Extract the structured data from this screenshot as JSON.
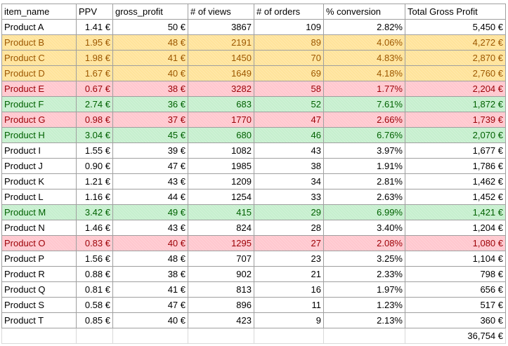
{
  "table": {
    "headers": [
      "item_name",
      "PPV",
      "gross_profit",
      "# of views",
      "# of orders",
      "% conversion",
      "Total Gross Profit"
    ],
    "rows": [
      {
        "highlight": "none",
        "cells": [
          "Product A",
          "1.41 €",
          "50 €",
          "3867",
          "109",
          "2.82%",
          "5,450 €"
        ]
      },
      {
        "highlight": "yellow",
        "cells": [
          "Product B",
          "1.95 €",
          "48 €",
          "2191",
          "89",
          "4.06%",
          "4,272 €"
        ]
      },
      {
        "highlight": "yellow",
        "cells": [
          "Product C",
          "1.98 €",
          "41 €",
          "1450",
          "70",
          "4.83%",
          "2,870 €"
        ]
      },
      {
        "highlight": "yellow",
        "cells": [
          "Product D",
          "1.67 €",
          "40 €",
          "1649",
          "69",
          "4.18%",
          "2,760 €"
        ]
      },
      {
        "highlight": "red",
        "cells": [
          "Product E",
          "0.67 €",
          "38 €",
          "3282",
          "58",
          "1.77%",
          "2,204 €"
        ]
      },
      {
        "highlight": "green",
        "cells": [
          "Product F",
          "2.74 €",
          "36 €",
          "683",
          "52",
          "7.61%",
          "1,872 €"
        ]
      },
      {
        "highlight": "red",
        "cells": [
          "Product G",
          "0.98 €",
          "37 €",
          "1770",
          "47",
          "2.66%",
          "1,739 €"
        ]
      },
      {
        "highlight": "green",
        "cells": [
          "Product H",
          "3.04 €",
          "45 €",
          "680",
          "46",
          "6.76%",
          "2,070 €"
        ]
      },
      {
        "highlight": "none",
        "cells": [
          "Product I",
          "1.55 €",
          "39 €",
          "1082",
          "43",
          "3.97%",
          "1,677 €"
        ]
      },
      {
        "highlight": "none",
        "cells": [
          "Product J",
          "0.90 €",
          "47 €",
          "1985",
          "38",
          "1.91%",
          "1,786 €"
        ]
      },
      {
        "highlight": "none",
        "cells": [
          "Product K",
          "1.21 €",
          "43 €",
          "1209",
          "34",
          "2.81%",
          "1,462 €"
        ]
      },
      {
        "highlight": "none",
        "cells": [
          "Product L",
          "1.16 €",
          "44 €",
          "1254",
          "33",
          "2.63%",
          "1,452 €"
        ]
      },
      {
        "highlight": "green",
        "cells": [
          "Product M",
          "3.42 €",
          "49 €",
          "415",
          "29",
          "6.99%",
          "1,421 €"
        ]
      },
      {
        "highlight": "none",
        "cells": [
          "Product N",
          "1.46 €",
          "43 €",
          "824",
          "28",
          "3.40%",
          "1,204 €"
        ]
      },
      {
        "highlight": "red",
        "cells": [
          "Product O",
          "0.83 €",
          "40 €",
          "1295",
          "27",
          "2.08%",
          "1,080 €"
        ]
      },
      {
        "highlight": "none",
        "cells": [
          "Product P",
          "1.56 €",
          "48 €",
          "707",
          "23",
          "3.25%",
          "1,104 €"
        ]
      },
      {
        "highlight": "none",
        "cells": [
          "Product R",
          "0.88 €",
          "38 €",
          "902",
          "21",
          "2.33%",
          "798 €"
        ]
      },
      {
        "highlight": "none",
        "cells": [
          "Product Q",
          "0.81 €",
          "41 €",
          "813",
          "16",
          "1.97%",
          "656 €"
        ]
      },
      {
        "highlight": "none",
        "cells": [
          "Product S",
          "0.58 €",
          "47 €",
          "896",
          "11",
          "1.23%",
          "517 €"
        ]
      },
      {
        "highlight": "none",
        "cells": [
          "Product T",
          "0.85 €",
          "40 €",
          "423",
          "9",
          "2.13%",
          "360 €"
        ]
      }
    ],
    "total": "36,754 €"
  },
  "colors": {
    "yellow_fill": "#ffe39a",
    "yellow_text": "#9c5700",
    "red_fill": "#ffc7ce",
    "red_text": "#9c0006",
    "green_fill": "#c6efce",
    "green_text": "#006100",
    "gridline": "#9f9f9f"
  }
}
